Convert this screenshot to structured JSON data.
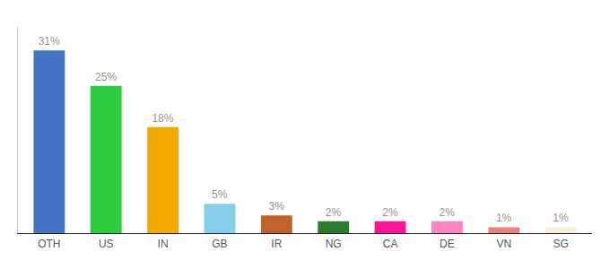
{
  "chart_data": {
    "type": "bar",
    "categories": [
      "OTH",
      "US",
      "IN",
      "GB",
      "IR",
      "NG",
      "CA",
      "DE",
      "VN",
      "SG"
    ],
    "values": [
      31,
      25,
      18,
      5,
      3,
      2,
      2,
      2,
      1,
      1
    ],
    "value_labels": [
      "31%",
      "25%",
      "18%",
      "5%",
      "3%",
      "2%",
      "2%",
      "2%",
      "1%",
      "1%"
    ],
    "colors": [
      "#4472c4",
      "#2ecc40",
      "#f5a800",
      "#87ceeb",
      "#c0622a",
      "#2d7a2d",
      "#ff1493",
      "#ff85c0",
      "#f08080",
      "#f5f0dc"
    ],
    "ylim": [
      0,
      35
    ],
    "data_labels": true,
    "tick_labels": "x",
    "grid": false
  }
}
